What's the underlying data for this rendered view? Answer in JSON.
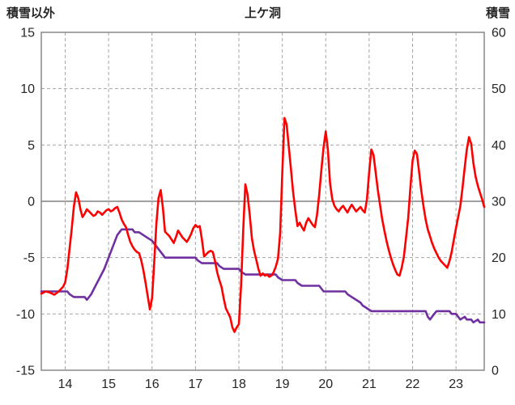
{
  "chart_data": {
    "type": "line",
    "title": "上ケ洞",
    "left_axis": {
      "label": "積雪以外",
      "min": -15,
      "max": 15,
      "ticks": [
        15,
        10,
        5,
        0,
        -5,
        -10,
        -15
      ]
    },
    "right_axis": {
      "label": "積雪",
      "min": 0,
      "max": 60,
      "ticks": [
        60,
        50,
        40,
        30,
        20,
        10,
        0
      ]
    },
    "x_axis": {
      "min": 13.45,
      "max": 23.65,
      "ticks": [
        14,
        15,
        16,
        17,
        18,
        19,
        20,
        21,
        22,
        23
      ]
    },
    "grid": {
      "line_color": "#a6a6a6",
      "zero_line_color": "#808080",
      "frame_color": "#808080",
      "background": "#ffffff"
    },
    "series": [
      {
        "name": "積雪",
        "axis": "right",
        "color": "#7030a0",
        "points": [
          [
            13.45,
            14
          ],
          [
            14.05,
            14
          ],
          [
            14.1,
            13.5
          ],
          [
            14.2,
            13
          ],
          [
            14.45,
            13
          ],
          [
            14.5,
            12.5
          ],
          [
            14.55,
            13
          ],
          [
            14.6,
            13.5
          ],
          [
            14.7,
            15
          ],
          [
            14.8,
            16.5
          ],
          [
            14.9,
            18
          ],
          [
            15.0,
            20
          ],
          [
            15.1,
            22
          ],
          [
            15.2,
            24
          ],
          [
            15.3,
            25
          ],
          [
            15.55,
            25
          ],
          [
            15.6,
            24.5
          ],
          [
            15.7,
            24.5
          ],
          [
            15.8,
            24
          ],
          [
            15.9,
            23.5
          ],
          [
            16.0,
            23
          ],
          [
            16.05,
            22.5
          ],
          [
            16.1,
            22
          ],
          [
            16.2,
            21
          ],
          [
            16.25,
            20.5
          ],
          [
            16.3,
            20
          ],
          [
            17.0,
            20
          ],
          [
            17.05,
            19.5
          ],
          [
            17.15,
            19
          ],
          [
            17.5,
            19
          ],
          [
            17.55,
            18.5
          ],
          [
            17.65,
            18
          ],
          [
            18.0,
            18
          ],
          [
            18.05,
            17.5
          ],
          [
            18.15,
            17
          ],
          [
            18.85,
            17
          ],
          [
            18.9,
            16.5
          ],
          [
            19.0,
            16
          ],
          [
            19.3,
            16
          ],
          [
            19.35,
            15.5
          ],
          [
            19.45,
            15
          ],
          [
            19.85,
            15
          ],
          [
            19.9,
            14.5
          ],
          [
            19.95,
            14
          ],
          [
            20.45,
            14
          ],
          [
            20.5,
            13.5
          ],
          [
            20.6,
            13
          ],
          [
            20.7,
            12.5
          ],
          [
            20.8,
            12
          ],
          [
            20.85,
            11.5
          ],
          [
            20.95,
            11
          ],
          [
            21.05,
            10.5
          ],
          [
            21.15,
            10.5
          ],
          [
            22.3,
            10.5
          ],
          [
            22.35,
            9.5
          ],
          [
            22.4,
            9
          ],
          [
            22.45,
            9.5
          ],
          [
            22.5,
            10
          ],
          [
            22.55,
            10.5
          ],
          [
            22.85,
            10.5
          ],
          [
            22.9,
            10
          ],
          [
            23.0,
            10
          ],
          [
            23.05,
            9.5
          ],
          [
            23.1,
            9
          ],
          [
            23.2,
            9.5
          ],
          [
            23.25,
            9
          ],
          [
            23.35,
            9
          ],
          [
            23.4,
            8.5
          ],
          [
            23.5,
            9
          ],
          [
            23.55,
            8.5
          ],
          [
            23.65,
            8.5
          ]
        ]
      },
      {
        "name": "積雪以外",
        "axis": "left",
        "color": "#ff0000",
        "points": [
          [
            13.45,
            -8.2
          ],
          [
            13.55,
            -8.0
          ],
          [
            13.65,
            -8.1
          ],
          [
            13.75,
            -8.3
          ],
          [
            13.85,
            -8.0
          ],
          [
            13.95,
            -7.6
          ],
          [
            14.0,
            -7.2
          ],
          [
            14.05,
            -6.0
          ],
          [
            14.15,
            -2.5
          ],
          [
            14.2,
            -0.5
          ],
          [
            14.25,
            0.8
          ],
          [
            14.3,
            0.3
          ],
          [
            14.35,
            -0.7
          ],
          [
            14.4,
            -1.4
          ],
          [
            14.45,
            -1.1
          ],
          [
            14.5,
            -0.7
          ],
          [
            14.55,
            -0.9
          ],
          [
            14.6,
            -1.1
          ],
          [
            14.65,
            -1.3
          ],
          [
            14.7,
            -1.2
          ],
          [
            14.75,
            -0.9
          ],
          [
            14.8,
            -1.0
          ],
          [
            14.85,
            -1.2
          ],
          [
            14.9,
            -1.0
          ],
          [
            14.95,
            -0.8
          ],
          [
            15.0,
            -0.7
          ],
          [
            15.05,
            -0.9
          ],
          [
            15.1,
            -0.8
          ],
          [
            15.15,
            -0.6
          ],
          [
            15.2,
            -0.5
          ],
          [
            15.25,
            -1.0
          ],
          [
            15.3,
            -1.6
          ],
          [
            15.35,
            -2.0
          ],
          [
            15.4,
            -2.3
          ],
          [
            15.45,
            -3.0
          ],
          [
            15.5,
            -3.6
          ],
          [
            15.55,
            -4.0
          ],
          [
            15.6,
            -4.3
          ],
          [
            15.65,
            -4.5
          ],
          [
            15.7,
            -4.6
          ],
          [
            15.75,
            -5.2
          ],
          [
            15.8,
            -6.1
          ],
          [
            15.85,
            -7.2
          ],
          [
            15.9,
            -8.4
          ],
          [
            15.95,
            -9.6
          ],
          [
            16.0,
            -8.6
          ],
          [
            16.05,
            -5.5
          ],
          [
            16.1,
            -2.0
          ],
          [
            16.15,
            0.3
          ],
          [
            16.2,
            1.0
          ],
          [
            16.25,
            -0.6
          ],
          [
            16.3,
            -2.7
          ],
          [
            16.35,
            -2.9
          ],
          [
            16.4,
            -3.1
          ],
          [
            16.45,
            -3.4
          ],
          [
            16.5,
            -3.7
          ],
          [
            16.55,
            -3.2
          ],
          [
            16.6,
            -2.6
          ],
          [
            16.65,
            -2.9
          ],
          [
            16.7,
            -3.2
          ],
          [
            16.75,
            -3.4
          ],
          [
            16.8,
            -3.6
          ],
          [
            16.85,
            -3.3
          ],
          [
            16.9,
            -2.9
          ],
          [
            16.95,
            -2.4
          ],
          [
            17.0,
            -2.1
          ],
          [
            17.05,
            -2.3
          ],
          [
            17.1,
            -2.2
          ],
          [
            17.15,
            -3.4
          ],
          [
            17.2,
            -4.9
          ],
          [
            17.25,
            -4.7
          ],
          [
            17.3,
            -4.5
          ],
          [
            17.35,
            -4.4
          ],
          [
            17.4,
            -4.5
          ],
          [
            17.45,
            -5.3
          ],
          [
            17.5,
            -6.3
          ],
          [
            17.55,
            -7.0
          ],
          [
            17.6,
            -7.6
          ],
          [
            17.65,
            -8.6
          ],
          [
            17.7,
            -9.5
          ],
          [
            17.75,
            -9.9
          ],
          [
            17.8,
            -10.3
          ],
          [
            17.85,
            -11.2
          ],
          [
            17.9,
            -11.6
          ],
          [
            17.95,
            -11.2
          ],
          [
            18.0,
            -10.9
          ],
          [
            18.05,
            -7.5
          ],
          [
            18.1,
            -2.5
          ],
          [
            18.15,
            1.5
          ],
          [
            18.2,
            0.6
          ],
          [
            18.25,
            -1.2
          ],
          [
            18.3,
            -3.3
          ],
          [
            18.35,
            -4.4
          ],
          [
            18.4,
            -5.2
          ],
          [
            18.45,
            -6.0
          ],
          [
            18.5,
            -6.6
          ],
          [
            18.55,
            -6.4
          ],
          [
            18.6,
            -6.6
          ],
          [
            18.65,
            -6.5
          ],
          [
            18.7,
            -6.7
          ],
          [
            18.75,
            -6.6
          ],
          [
            18.8,
            -6.3
          ],
          [
            18.85,
            -5.8
          ],
          [
            18.9,
            -5.1
          ],
          [
            18.95,
            -2.8
          ],
          [
            19.0,
            2.5
          ],
          [
            19.05,
            7.4
          ],
          [
            19.1,
            6.8
          ],
          [
            19.15,
            4.8
          ],
          [
            19.2,
            2.8
          ],
          [
            19.25,
            0.8
          ],
          [
            19.3,
            -0.8
          ],
          [
            19.35,
            -2.2
          ],
          [
            19.4,
            -1.9
          ],
          [
            19.45,
            -2.3
          ],
          [
            19.5,
            -2.6
          ],
          [
            19.55,
            -1.9
          ],
          [
            19.6,
            -1.5
          ],
          [
            19.65,
            -1.8
          ],
          [
            19.7,
            -2.1
          ],
          [
            19.75,
            -2.3
          ],
          [
            19.8,
            -1.2
          ],
          [
            19.85,
            0.6
          ],
          [
            19.9,
            2.8
          ],
          [
            19.95,
            4.8
          ],
          [
            20.0,
            6.2
          ],
          [
            20.05,
            4.6
          ],
          [
            20.1,
            1.6
          ],
          [
            20.15,
            0.2
          ],
          [
            20.2,
            -0.4
          ],
          [
            20.25,
            -0.7
          ],
          [
            20.3,
            -0.9
          ],
          [
            20.35,
            -0.6
          ],
          [
            20.4,
            -0.4
          ],
          [
            20.45,
            -0.7
          ],
          [
            20.5,
            -1.0
          ],
          [
            20.55,
            -0.6
          ],
          [
            20.6,
            -0.3
          ],
          [
            20.65,
            -0.6
          ],
          [
            20.7,
            -0.9
          ],
          [
            20.75,
            -0.7
          ],
          [
            20.8,
            -0.5
          ],
          [
            20.85,
            -0.8
          ],
          [
            20.9,
            -1.0
          ],
          [
            20.95,
            0.2
          ],
          [
            21.0,
            2.6
          ],
          [
            21.05,
            4.6
          ],
          [
            21.1,
            4.1
          ],
          [
            21.15,
            2.6
          ],
          [
            21.2,
            1.0
          ],
          [
            21.25,
            -0.3
          ],
          [
            21.3,
            -1.6
          ],
          [
            21.35,
            -2.6
          ],
          [
            21.4,
            -3.5
          ],
          [
            21.45,
            -4.3
          ],
          [
            21.5,
            -5.0
          ],
          [
            21.55,
            -5.6
          ],
          [
            21.6,
            -6.1
          ],
          [
            21.65,
            -6.5
          ],
          [
            21.7,
            -6.6
          ],
          [
            21.75,
            -5.9
          ],
          [
            21.8,
            -4.9
          ],
          [
            21.85,
            -3.2
          ],
          [
            21.9,
            -1.4
          ],
          [
            21.95,
            1.2
          ],
          [
            22.0,
            3.6
          ],
          [
            22.05,
            4.5
          ],
          [
            22.1,
            4.2
          ],
          [
            22.15,
            2.6
          ],
          [
            22.2,
            1.0
          ],
          [
            22.25,
            -0.4
          ],
          [
            22.3,
            -1.6
          ],
          [
            22.35,
            -2.5
          ],
          [
            22.4,
            -3.1
          ],
          [
            22.45,
            -3.7
          ],
          [
            22.5,
            -4.2
          ],
          [
            22.55,
            -4.6
          ],
          [
            22.6,
            -5.0
          ],
          [
            22.65,
            -5.3
          ],
          [
            22.7,
            -5.5
          ],
          [
            22.75,
            -5.7
          ],
          [
            22.8,
            -5.9
          ],
          [
            22.85,
            -5.3
          ],
          [
            22.9,
            -4.5
          ],
          [
            22.95,
            -3.4
          ],
          [
            23.0,
            -2.4
          ],
          [
            23.05,
            -1.4
          ],
          [
            23.1,
            -0.4
          ],
          [
            23.15,
            1.2
          ],
          [
            23.2,
            3.0
          ],
          [
            23.25,
            4.6
          ],
          [
            23.3,
            5.7
          ],
          [
            23.35,
            5.1
          ],
          [
            23.4,
            3.4
          ],
          [
            23.45,
            2.2
          ],
          [
            23.5,
            1.4
          ],
          [
            23.55,
            0.8
          ],
          [
            23.6,
            0.2
          ],
          [
            23.65,
            -0.5
          ]
        ]
      }
    ]
  }
}
